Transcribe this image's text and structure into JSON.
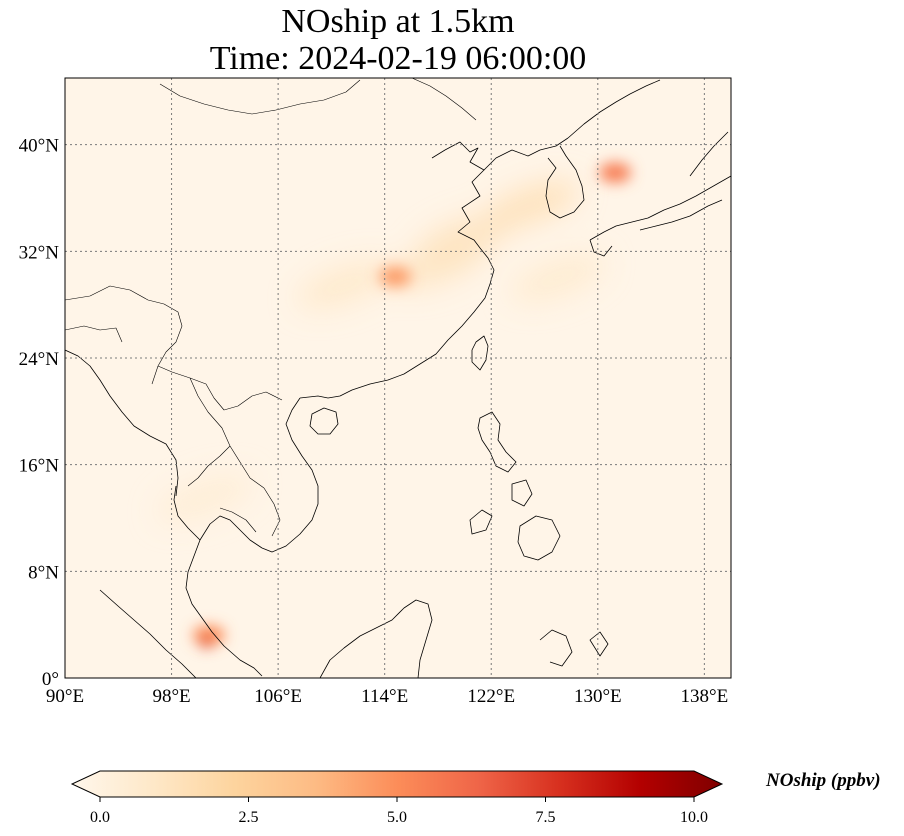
{
  "title": {
    "line1": "NOship at 1.5km",
    "line2": "Time: 2024-02-19 06:00:00"
  },
  "map": {
    "projection": "PlateCarree",
    "lon_range": [
      90,
      140
    ],
    "lat_range": [
      0,
      45
    ],
    "gridlines": "dotted",
    "lon_ticks": [
      {
        "value": 90,
        "label": "90°E"
      },
      {
        "value": 98,
        "label": "98°E"
      },
      {
        "value": 106,
        "label": "106°E"
      },
      {
        "value": 114,
        "label": "114°E"
      },
      {
        "value": 122,
        "label": "122°E"
      },
      {
        "value": 130,
        "label": "130°E"
      },
      {
        "value": 138,
        "label": "138°E"
      }
    ],
    "lat_ticks": [
      {
        "value": 0,
        "label": "0°"
      },
      {
        "value": 8,
        "label": "8°N"
      },
      {
        "value": 16,
        "label": "16°N"
      },
      {
        "value": 24,
        "label": "24°N"
      },
      {
        "value": 32,
        "label": "32°N"
      },
      {
        "value": 40,
        "label": "40°N"
      }
    ],
    "background_color": "#fff5e8",
    "hotspots": [
      {
        "lon": 131.3,
        "lat": 37.9,
        "value": 5.5
      },
      {
        "lon": 114.8,
        "lat": 30.1,
        "value": 4.6
      },
      {
        "lon": 100.8,
        "lat": 3.2,
        "value": 5.0
      },
      {
        "lon": 100.6,
        "lat": 2.7,
        "value": 7.0
      }
    ],
    "plumes": [
      {
        "lon": 125.0,
        "lat": 35.5,
        "value": 1.8
      },
      {
        "lon": 120.0,
        "lat": 33.0,
        "value": 1.6
      },
      {
        "lon": 118.0,
        "lat": 31.0,
        "value": 1.5
      },
      {
        "lon": 111.0,
        "lat": 29.5,
        "value": 1.2
      },
      {
        "lon": 127.0,
        "lat": 30.0,
        "value": 1.0
      },
      {
        "lon": 100.5,
        "lat": 13.5,
        "value": 0.8
      }
    ]
  },
  "colorbar": {
    "label": "NOship (ppbv)",
    "colormap": "OrRd",
    "range": [
      0,
      10
    ],
    "extend": "both",
    "ticks": [
      {
        "value": 0,
        "label": "0.0"
      },
      {
        "value": 2.5,
        "label": "2.5"
      },
      {
        "value": 5,
        "label": "5.0"
      },
      {
        "value": 7.5,
        "label": "7.5"
      },
      {
        "value": 10,
        "label": "10.0"
      }
    ],
    "stops": [
      "#fff7ec",
      "#fee8c8",
      "#fdd49e",
      "#fdbb84",
      "#fc8d59",
      "#ef6548",
      "#d7301f",
      "#b30000",
      "#7f0000"
    ]
  }
}
